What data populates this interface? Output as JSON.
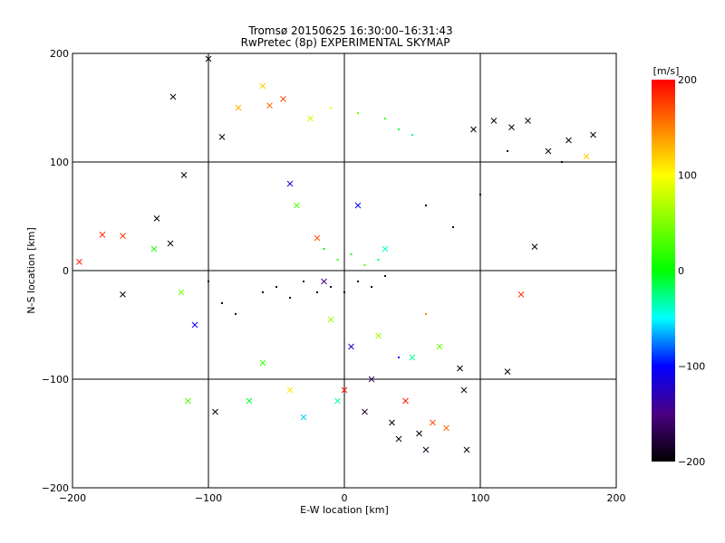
{
  "chart_data": {
    "type": "scatter",
    "title": "Tromsø 20150625 16:30:00–16:31:43",
    "subtitle": "RwPretec (8p) EXPERIMENTAL SKYMAP",
    "xlabel": "E-W location [km]",
    "ylabel": "N-S location [km]",
    "xlim": [
      -200,
      200
    ],
    "ylim": [
      -200,
      200
    ],
    "x_ticks": [
      "−200",
      "−100",
      "0",
      "100",
      "200"
    ],
    "y_ticks": [
      "−200",
      "−100",
      "0",
      "100",
      "200"
    ],
    "grid": true,
    "colorbar": {
      "label": "[m/s]",
      "range": [
        -200,
        200
      ],
      "ticks": [
        "200",
        "100",
        "0",
        "−100",
        "−200"
      ]
    },
    "series": [
      {
        "marker": "cross",
        "points": [
          {
            "x": -195,
            "y": 8,
            "v": 190
          },
          {
            "x": -178,
            "y": 33,
            "v": 185
          },
          {
            "x": -163,
            "y": 32,
            "v": 180
          },
          {
            "x": -163,
            "y": -22,
            "v": -190
          },
          {
            "x": -138,
            "y": 48,
            "v": -200
          },
          {
            "x": -128,
            "y": 25,
            "v": -195
          },
          {
            "x": -126,
            "y": 160,
            "v": -190
          },
          {
            "x": -118,
            "y": 88,
            "v": -200
          },
          {
            "x": -115,
            "y": -120,
            "v": 30
          },
          {
            "x": -100,
            "y": 195,
            "v": -200
          },
          {
            "x": -90,
            "y": 123,
            "v": -190
          },
          {
            "x": -78,
            "y": 150,
            "v": 130
          },
          {
            "x": -60,
            "y": 170,
            "v": 120
          },
          {
            "x": -55,
            "y": 152,
            "v": 160
          },
          {
            "x": -45,
            "y": 158,
            "v": 175
          },
          {
            "x": -40,
            "y": 80,
            "v": -120
          },
          {
            "x": -35,
            "y": 60,
            "v": 30
          },
          {
            "x": -25,
            "y": 140,
            "v": 80
          },
          {
            "x": -20,
            "y": 30,
            "v": 170
          },
          {
            "x": -15,
            "y": -10,
            "v": -150
          },
          {
            "x": -10,
            "y": -45,
            "v": 60
          },
          {
            "x": -5,
            "y": -120,
            "v": -30
          },
          {
            "x": 0,
            "y": -110,
            "v": 190
          },
          {
            "x": 5,
            "y": -70,
            "v": -120
          },
          {
            "x": 10,
            "y": 60,
            "v": -100
          },
          {
            "x": 15,
            "y": -130,
            "v": -180
          },
          {
            "x": 20,
            "y": -100,
            "v": -160
          },
          {
            "x": 25,
            "y": -60,
            "v": 60
          },
          {
            "x": 30,
            "y": 20,
            "v": -40
          },
          {
            "x": 35,
            "y": -140,
            "v": -200
          },
          {
            "x": 40,
            "y": -155,
            "v": -195
          },
          {
            "x": 45,
            "y": -120,
            "v": 190
          },
          {
            "x": 50,
            "y": -80,
            "v": -30
          },
          {
            "x": 55,
            "y": -150,
            "v": -200
          },
          {
            "x": 60,
            "y": -165,
            "v": -190
          },
          {
            "x": 65,
            "y": -140,
            "v": 170
          },
          {
            "x": 70,
            "y": -70,
            "v": 40
          },
          {
            "x": 75,
            "y": -145,
            "v": 160
          },
          {
            "x": 85,
            "y": -90,
            "v": -200
          },
          {
            "x": 88,
            "y": -110,
            "v": -190
          },
          {
            "x": 90,
            "y": -165,
            "v": -200
          },
          {
            "x": 95,
            "y": 130,
            "v": -200
          },
          {
            "x": 110,
            "y": 138,
            "v": -195
          },
          {
            "x": 120,
            "y": -93,
            "v": -200
          },
          {
            "x": 123,
            "y": 132,
            "v": -200
          },
          {
            "x": 130,
            "y": -22,
            "v": 185
          },
          {
            "x": 135,
            "y": 138,
            "v": -190
          },
          {
            "x": 140,
            "y": 22,
            "v": -200
          },
          {
            "x": 150,
            "y": 110,
            "v": -190
          },
          {
            "x": 165,
            "y": 120,
            "v": -200
          },
          {
            "x": 178,
            "y": 105,
            "v": 120
          },
          {
            "x": 183,
            "y": 125,
            "v": -200
          },
          {
            "x": -60,
            "y": -85,
            "v": 20
          },
          {
            "x": -40,
            "y": -110,
            "v": 110
          },
          {
            "x": -30,
            "y": -135,
            "v": -60
          },
          {
            "x": -70,
            "y": -120,
            "v": -10
          },
          {
            "x": -95,
            "y": -130,
            "v": -200
          },
          {
            "x": -110,
            "y": -50,
            "v": -100
          },
          {
            "x": -120,
            "y": -20,
            "v": 40
          },
          {
            "x": -140,
            "y": 20,
            "v": 10
          }
        ]
      },
      {
        "marker": "dot",
        "points": [
          {
            "x": -60,
            "y": -20,
            "v": -200
          },
          {
            "x": -50,
            "y": -15,
            "v": -195
          },
          {
            "x": -40,
            "y": -25,
            "v": -200
          },
          {
            "x": -30,
            "y": -10,
            "v": -190
          },
          {
            "x": -20,
            "y": -20,
            "v": -200
          },
          {
            "x": -10,
            "y": -15,
            "v": -185
          },
          {
            "x": 0,
            "y": -20,
            "v": -200
          },
          {
            "x": 10,
            "y": -10,
            "v": -195
          },
          {
            "x": 20,
            "y": -15,
            "v": -200
          },
          {
            "x": 30,
            "y": -5,
            "v": -190
          },
          {
            "x": -5,
            "y": 10,
            "v": 20
          },
          {
            "x": 5,
            "y": 15,
            "v": 10
          },
          {
            "x": 15,
            "y": 5,
            "v": 30
          },
          {
            "x": -15,
            "y": 20,
            "v": 0
          },
          {
            "x": 25,
            "y": 10,
            "v": -20
          },
          {
            "x": 40,
            "y": 130,
            "v": -10
          },
          {
            "x": 30,
            "y": 140,
            "v": 20
          },
          {
            "x": 50,
            "y": 125,
            "v": -30
          },
          {
            "x": 10,
            "y": 145,
            "v": 40
          },
          {
            "x": -10,
            "y": 150,
            "v": 90
          },
          {
            "x": 60,
            "y": 60,
            "v": -200
          },
          {
            "x": 80,
            "y": 40,
            "v": -195
          },
          {
            "x": 100,
            "y": 70,
            "v": -200
          },
          {
            "x": 120,
            "y": 110,
            "v": -190
          },
          {
            "x": 160,
            "y": 100,
            "v": -200
          },
          {
            "x": -80,
            "y": -40,
            "v": -180
          },
          {
            "x": -90,
            "y": -30,
            "v": -200
          },
          {
            "x": -100,
            "y": -10,
            "v": -190
          },
          {
            "x": 40,
            "y": -80,
            "v": -100
          },
          {
            "x": 60,
            "y": -40,
            "v": 150
          }
        ]
      }
    ]
  }
}
